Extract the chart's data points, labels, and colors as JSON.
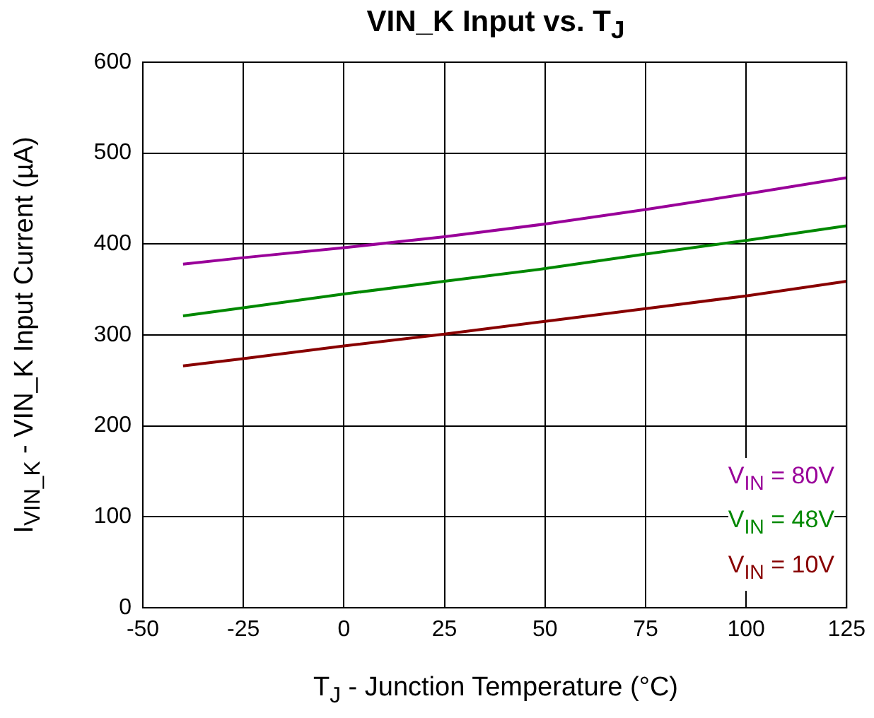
{
  "chart_data": {
    "type": "line",
    "title": "VIN_K Input vs. T$_{J}$",
    "xlabel": "T$_{J}$ - Junction Temperature (°C)",
    "ylabel": "I$_{VIN_K}$ - VIN_K Input Current (µA)",
    "x": [
      -40,
      -25,
      0,
      25,
      50,
      75,
      100,
      125
    ],
    "series": [
      {
        "name": "V$_{IN}$ = 80V",
        "color": "#990099",
        "values": [
          378,
          385,
          396,
          408,
          422,
          438,
          455,
          473
        ]
      },
      {
        "name": "V$_{IN}$ = 48V",
        "color": "#008800",
        "values": [
          321,
          330,
          345,
          359,
          373,
          389,
          404,
          420
        ]
      },
      {
        "name": "V$_{IN}$ = 10V",
        "color": "#880000",
        "values": [
          266,
          274,
          288,
          301,
          315,
          329,
          343,
          359
        ]
      }
    ],
    "xlim": [
      -50,
      125
    ],
    "xticks": [
      -50,
      -25,
      0,
      25,
      50,
      75,
      100,
      125
    ],
    "ylim": [
      0,
      600
    ],
    "yticks": [
      0,
      100,
      200,
      300,
      400,
      500,
      600
    ],
    "grid": true,
    "legend": "bottom right",
    "marker": "none",
    "line_style": "solid"
  }
}
